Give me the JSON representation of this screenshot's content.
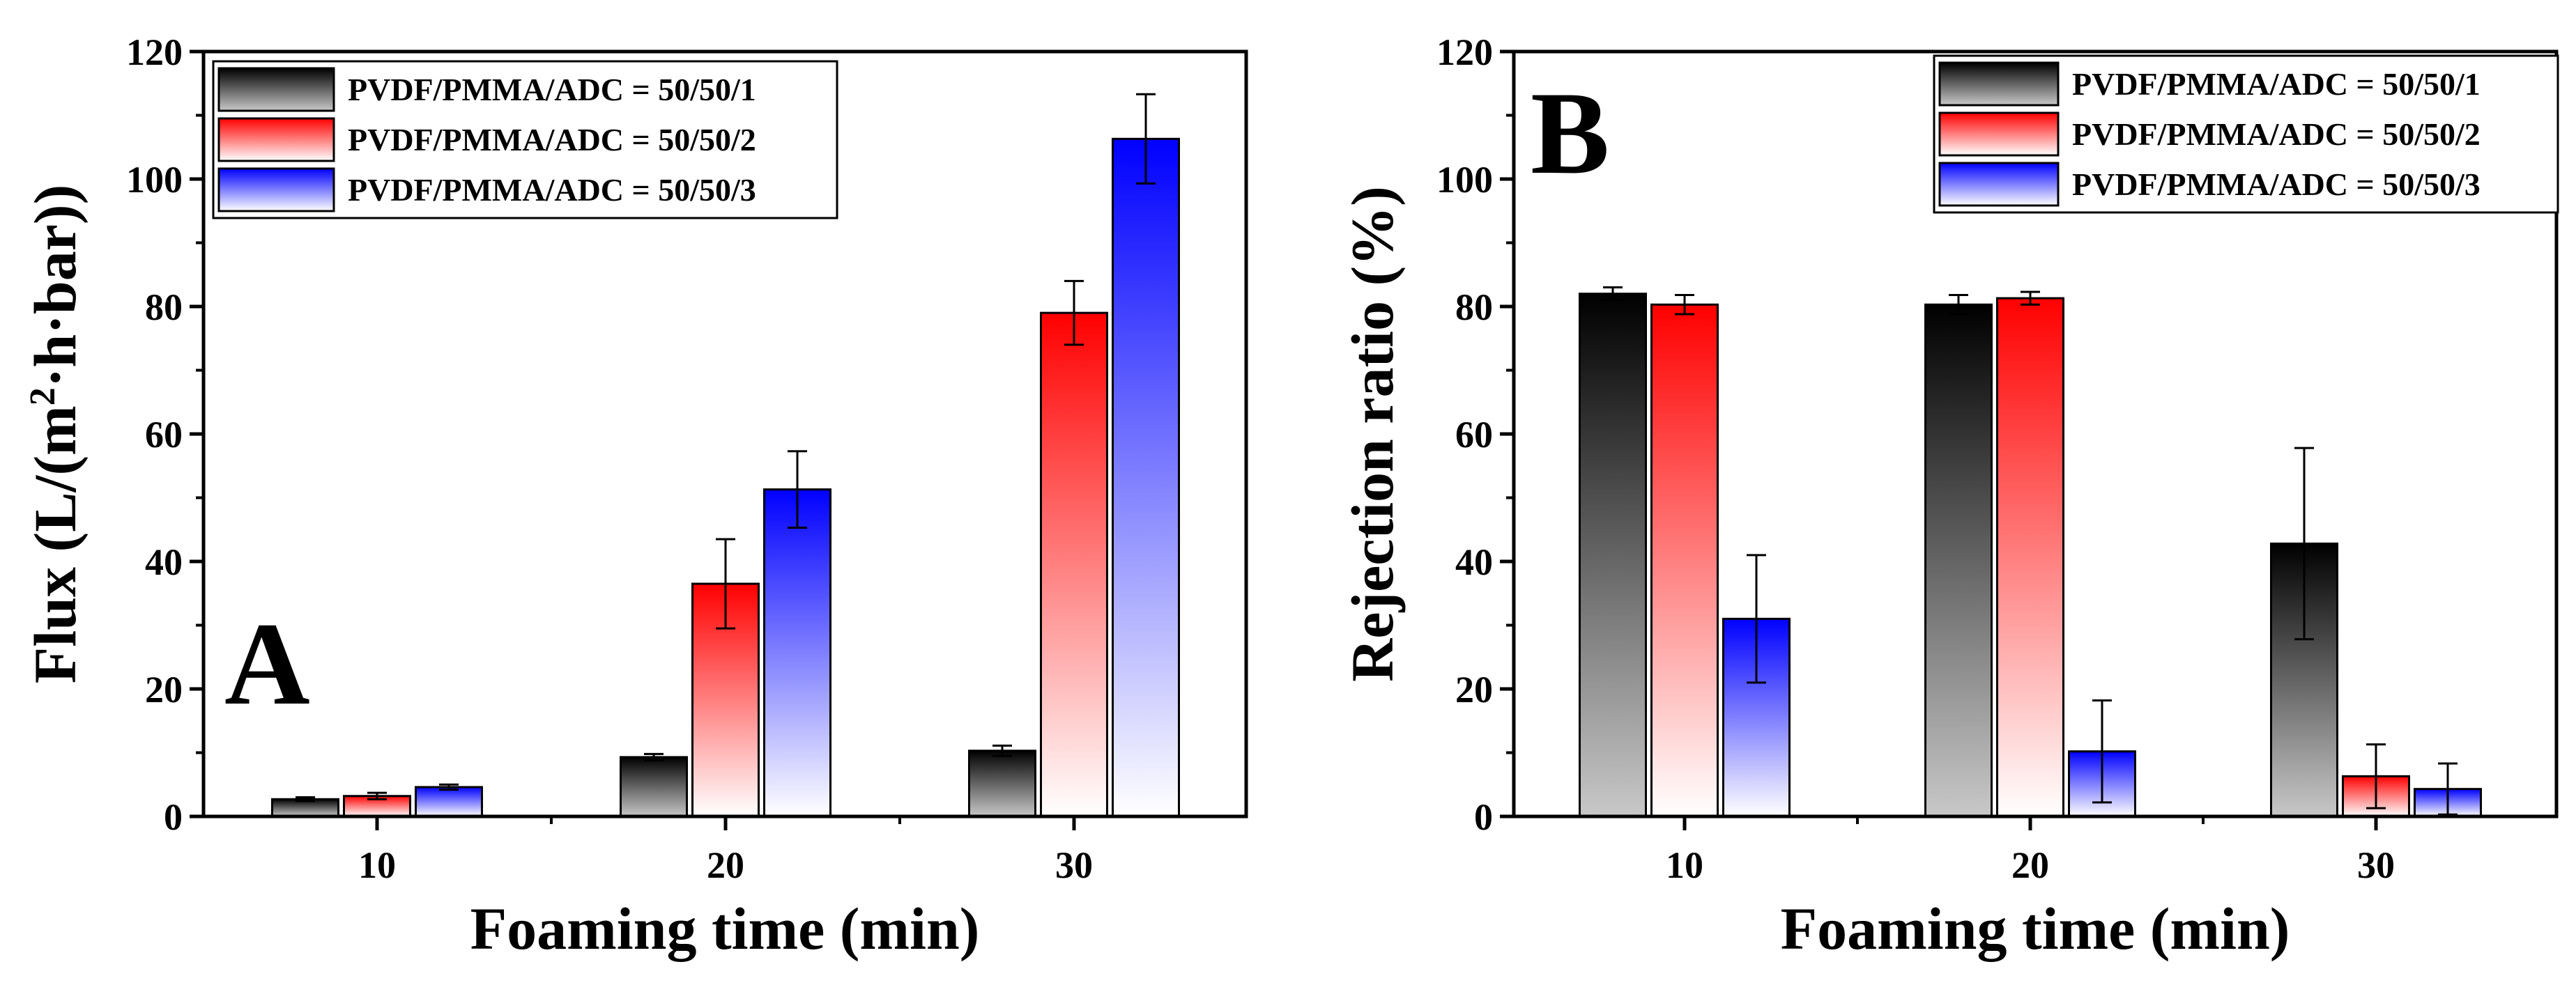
{
  "colors": {
    "series_1_top": "#000000",
    "series_1_bottom": "#c8c8c8",
    "series_2_top": "#ff0000",
    "series_2_bottom": "#ffffff",
    "series_3_top": "#0000ff",
    "series_3_bottom": "#ffffff"
  },
  "chart_data": [
    {
      "type": "bar",
      "panel_label": "A",
      "title": "",
      "xlabel": "Foaming time (min)",
      "ylabel_main": "Flux (L/(m",
      "ylabel_sup": "2",
      "ylabel_rest": "·h·bar))",
      "categories": [
        "10",
        "20",
        "30"
      ],
      "ylim": [
        0,
        120
      ],
      "yticks": [
        "0",
        "20",
        "40",
        "60",
        "80",
        "100",
        "120"
      ],
      "legend_position": "top-left",
      "series": [
        {
          "name": "PVDF/PMMA/ADC = 50/50/1",
          "values": [
            2.7,
            9.3,
            10.3
          ],
          "errors": [
            0.3,
            0.5,
            0.8
          ]
        },
        {
          "name": "PVDF/PMMA/ADC = 50/50/2",
          "values": [
            3.2,
            36.5,
            79.0
          ],
          "errors": [
            0.5,
            7.0,
            5.0
          ]
        },
        {
          "name": "PVDF/PMMA/ADC = 50/50/3",
          "values": [
            4.6,
            51.3,
            106.3
          ],
          "errors": [
            0.4,
            6.0,
            7.0
          ]
        }
      ]
    },
    {
      "type": "bar",
      "panel_label": "B",
      "title": "",
      "xlabel": "Foaming time (min)",
      "ylabel_main": "Rejection ratio (%)",
      "ylabel_sup": "",
      "ylabel_rest": "",
      "categories": [
        "10",
        "20",
        "30"
      ],
      "ylim": [
        0,
        120
      ],
      "yticks": [
        "0",
        "20",
        "40",
        "60",
        "80",
        "100",
        "120"
      ],
      "legend_position": "top-right",
      "series": [
        {
          "name": "PVDF/PMMA/ADC = 50/50/1",
          "values": [
            82.0,
            80.3,
            42.8
          ],
          "errors": [
            1.0,
            1.5,
            15.0
          ]
        },
        {
          "name": "PVDF/PMMA/ADC = 50/50/2",
          "values": [
            80.3,
            81.3,
            6.3
          ],
          "errors": [
            1.5,
            1.0,
            5.0
          ]
        },
        {
          "name": "PVDF/PMMA/ADC = 50/50/3",
          "values": [
            31.0,
            10.2,
            4.3
          ],
          "errors": [
            10.0,
            8.0,
            4.0
          ]
        }
      ]
    }
  ]
}
